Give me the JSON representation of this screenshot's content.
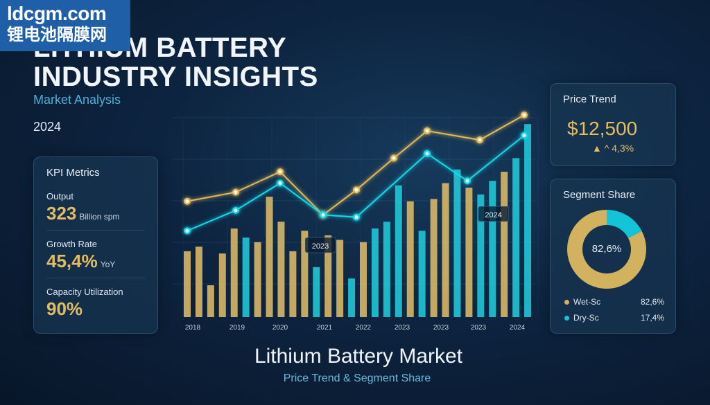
{
  "watermark": {
    "line1": "ldcgm.com",
    "line2": "锂电池隔膜网"
  },
  "header": {
    "title": "LITHIUM BATTERY\nINDUSTRY INSIGHTS",
    "subtitle": "Market Analysis",
    "year": "2024"
  },
  "kpi": {
    "title": "KPI Metrics",
    "items": [
      {
        "label": "Output",
        "value": "323",
        "unit": "Billion spm"
      },
      {
        "label": "Growth Rate",
        "value": "45,4%",
        "unit": "YoY"
      },
      {
        "label": "Capacity Utilization",
        "value": "90%",
        "unit": ""
      }
    ]
  },
  "price": {
    "title": "Price Trend",
    "value": "$12,500",
    "change": "▲ ^ 4,3%"
  },
  "segment": {
    "title": "Segment Share",
    "center_label": "82,6%",
    "items": [
      {
        "name": "Wet-Sc",
        "value": "82,6%",
        "share": 82.6,
        "color": "#d3b25f"
      },
      {
        "name": "Dry-Sc",
        "value": "17,4%",
        "share": 17.4,
        "color": "#13c4d8"
      }
    ]
  },
  "footer": {
    "title": "Lithium Battery Market",
    "subtitle": "Price Trend & Segment Share"
  },
  "chart_data": {
    "type": "bar",
    "x_labels": [
      "2018",
      "2019",
      "2020",
      "2021",
      "2022",
      "2023",
      "2023",
      "2023",
      "2024"
    ],
    "callouts": [
      {
        "text": "2023",
        "at": 3.0
      },
      {
        "text": "2024",
        "at": 6.9
      }
    ],
    "ylim": [
      0,
      100
    ],
    "series": [
      {
        "kind": "bars",
        "color_gold": "#d8b765",
        "color_teal": "#1fc7d5",
        "values": [
          29,
          31,
          14,
          28,
          39,
          35,
          33,
          53,
          42,
          29,
          38,
          22,
          36,
          34,
          17,
          33,
          39,
          42,
          58,
          51,
          38,
          52,
          59,
          65,
          57,
          54,
          60,
          64,
          70,
          85
        ]
      },
      {
        "kind": "line",
        "color": "#e6bb55",
        "values": [
          51,
          55,
          54,
          64,
          45,
          56,
          70,
          82,
          78,
          89
        ]
      },
      {
        "kind": "line",
        "color": "#19d7e8",
        "values": [
          38,
          47,
          59,
          45,
          44,
          64,
          72,
          60,
          80
        ]
      }
    ]
  }
}
